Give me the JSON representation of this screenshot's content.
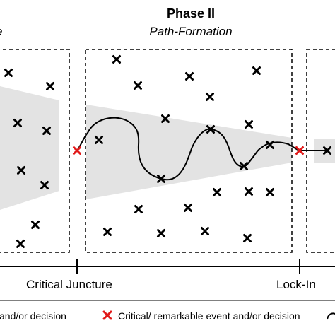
{
  "phase2": {
    "title": "Phase II",
    "subtitle": "Path-Formation"
  },
  "phase1": {
    "subtitle_fragment": "e"
  },
  "timeline": {
    "critical_juncture": "Critical Juncture",
    "lock_in": "Lock-In"
  },
  "legend": {
    "left_fragment": "and/or decision",
    "critical_event": "Critical/ remarkable event and/or decision"
  },
  "colors": {
    "critical": "#e11919",
    "event": "#000000",
    "cone": "#e3e3e3",
    "frame": "#000000"
  },
  "icons": {
    "event_marker": "cross-mark",
    "critical_marker": "red-cross-mark"
  }
}
